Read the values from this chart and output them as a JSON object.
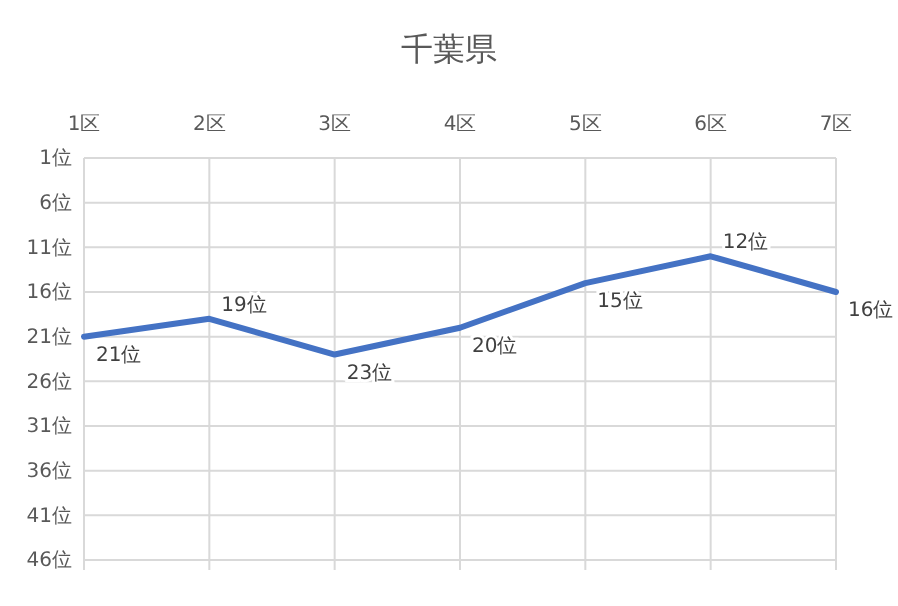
{
  "chart_data": {
    "type": "line",
    "title": "千葉県",
    "categories": [
      "1区",
      "2区",
      "3区",
      "4区",
      "5区",
      "6区",
      "7区"
    ],
    "series": [
      {
        "color": "#4472c4",
        "values": [
          21,
          19,
          23,
          20,
          15,
          12,
          16
        ],
        "value_labels": [
          "21位",
          "19位",
          "23位",
          "20位",
          "15位",
          "12位",
          "16位"
        ]
      }
    ],
    "ylim": [
      46,
      1
    ],
    "yticks": [
      {
        "value": 1,
        "label": "1位"
      },
      {
        "value": 6,
        "label": "6位"
      },
      {
        "value": 11,
        "label": "11位"
      },
      {
        "value": 16,
        "label": "16位"
      },
      {
        "value": 21,
        "label": "21位"
      },
      {
        "value": 26,
        "label": "26位"
      },
      {
        "value": 31,
        "label": "31位"
      },
      {
        "value": 36,
        "label": "36位"
      },
      {
        "value": 41,
        "label": "41位"
      },
      {
        "value": 46,
        "label": "46位"
      }
    ],
    "grid": true,
    "marker": "none",
    "line_style": "solid"
  }
}
